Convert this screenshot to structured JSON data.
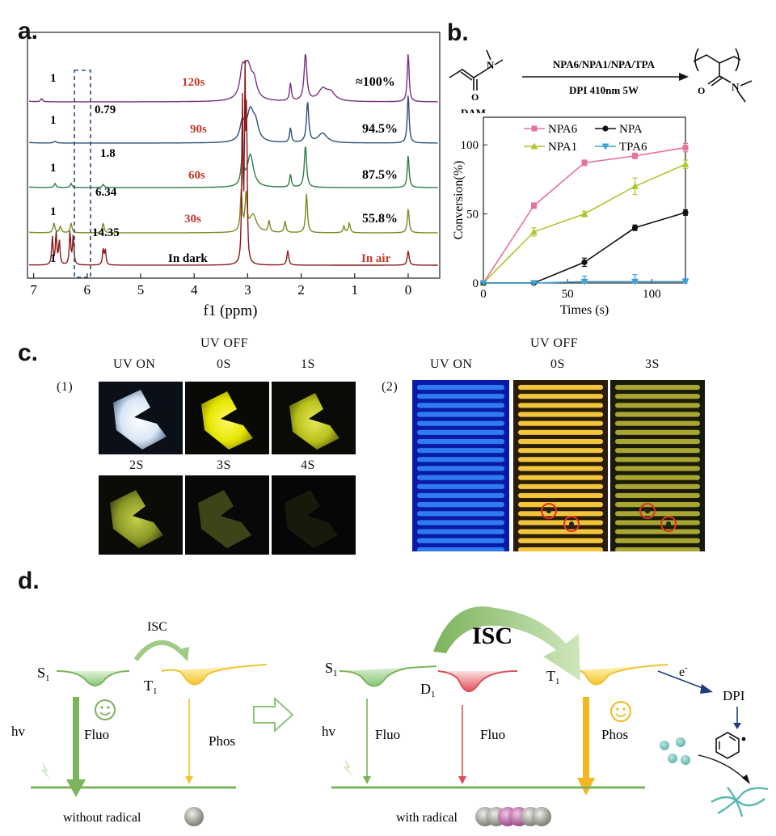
{
  "panel_labels": {
    "a": "a.",
    "b": "b.",
    "c": "c.",
    "d": "d."
  },
  "panel_a": {
    "xlabel": "f1 (ppm)",
    "xticks": [
      "7",
      "6",
      "5",
      "4",
      "3",
      "2",
      "1",
      "0"
    ],
    "rows": [
      {
        "time": "120s",
        "ref": "1",
        "integral": "",
        "conversion": "≈100%",
        "color": "#7b2f82"
      },
      {
        "time": "90s",
        "ref": "1",
        "integral": "0.79",
        "conversion": "94.5%",
        "color": "#2c4f7c"
      },
      {
        "time": "60s",
        "ref": "1",
        "integral": "1.8",
        "conversion": "87.5%",
        "color": "#2e7d46"
      },
      {
        "time": "30s",
        "ref": "1",
        "integral": "6.34",
        "conversion": "55.8%",
        "color": "#7d8a1f"
      },
      {
        "time": "In dark",
        "ref": "1",
        "integral": "14.35",
        "conversion": "In air",
        "color": "#8b1a1a"
      }
    ]
  },
  "panel_b": {
    "scheme": {
      "reactant": "DAM",
      "reagent_top": "NPA6/NPA1/NPA/TPA",
      "reagent_bottom": "DPI 410nm 5W"
    },
    "chart_data": {
      "type": "line",
      "xlabel": "Times (s)",
      "ylabel": "Conversion(%)",
      "xlim": [
        0,
        120
      ],
      "ylim": [
        0,
        120
      ],
      "xticks": [
        "0",
        "50",
        "100"
      ],
      "yticks": [
        "0",
        "50",
        "100"
      ],
      "x": [
        0,
        30,
        60,
        90,
        120
      ],
      "series": [
        {
          "name": "NPA6",
          "color": "#e8739a",
          "marker": "square",
          "values": [
            0,
            56,
            87,
            92,
            98
          ],
          "errors": [
            0,
            2,
            2,
            2,
            3
          ]
        },
        {
          "name": "NPA1",
          "color": "#a8c92c",
          "marker": "triangle",
          "values": [
            0,
            37,
            50,
            70,
            86
          ],
          "errors": [
            0,
            3,
            2,
            6,
            3
          ]
        },
        {
          "name": "NPA",
          "color": "#111111",
          "marker": "circle",
          "values": [
            0,
            0,
            15,
            40,
            51
          ],
          "errors": [
            0,
            0,
            3,
            2,
            2
          ]
        },
        {
          "name": "TPA6",
          "color": "#3fa0d8",
          "marker": "triangle-down",
          "values": [
            0,
            0,
            1,
            1,
            1
          ],
          "errors": [
            0,
            0,
            4,
            5,
            2
          ]
        }
      ]
    }
  },
  "panel_c": {
    "sub1": "(1)",
    "sub2": "(2)",
    "uv_off": "UV OFF",
    "uv_on": "UV ON",
    "t0": "0S",
    "t1": "1S",
    "t2": "2S",
    "t3": "3S",
    "t4": "4S"
  },
  "panel_d": {
    "isc_small": "ISC",
    "isc_big": "ISC",
    "s1": "S",
    "t1": "T",
    "d1": "D",
    "sub": "1",
    "hv": "hv",
    "fluo": "Fluo",
    "phos": "Phos",
    "eminus": "e",
    "dpi": "DPI",
    "without": "without radical",
    "with": "with radical"
  }
}
